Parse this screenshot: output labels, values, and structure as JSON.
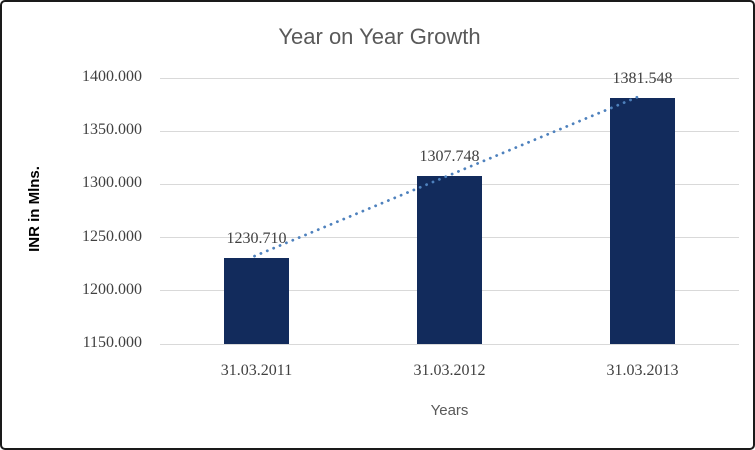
{
  "window": {
    "background": "#ffffff",
    "border_color": "#1a1a1a"
  },
  "chart_data": {
    "type": "bar",
    "title": "Year on Year Growth",
    "xlabel": "Years",
    "ylabel": "INR in Mlns.",
    "categories": [
      "31.03.2011",
      "31.03.2012",
      "31.03.2013"
    ],
    "values": [
      1230.71,
      1307.748,
      1381.548
    ],
    "data_labels": [
      "1230.710",
      "1307.748",
      "1381.548"
    ],
    "yticks": [
      "1150.000",
      "1200.000",
      "1250.000",
      "1300.000",
      "1350.000",
      "1400.000"
    ],
    "ylim": [
      1150,
      1400
    ],
    "grid": true,
    "legend": false,
    "trendline": {
      "type": "linear",
      "style": "dotted",
      "color": "#4E81BD"
    },
    "colors": {
      "bar": "#122B5C",
      "grid": "#D9D9D9",
      "title": "#595959",
      "axis_title": "#595959",
      "y_axis_title": "#000000",
      "tick_label": "#404040",
      "data_label": "#404040"
    }
  }
}
